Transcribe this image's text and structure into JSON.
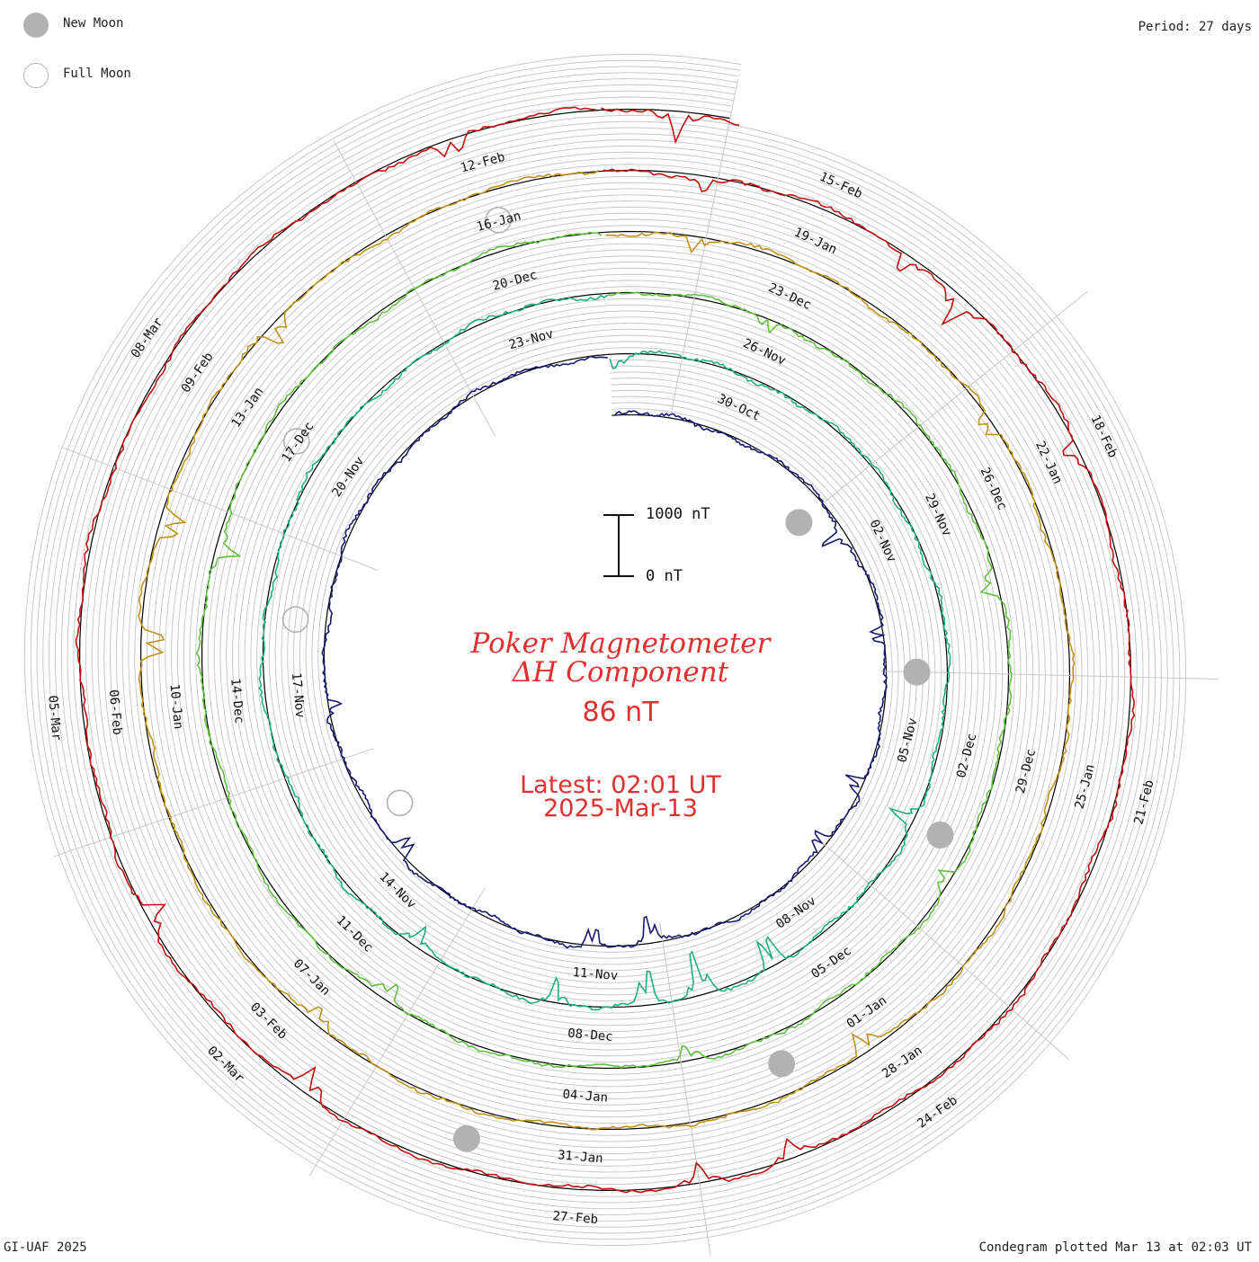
{
  "legend": {
    "new_moon_label": "New Moon",
    "full_moon_label": "Full Moon",
    "new_moon_color": "#b2b2b2",
    "full_moon_color": "#b2b2b2"
  },
  "period_label": "Period: 27 days",
  "footer": {
    "left": "GI-UAF 2025",
    "right": "Condegram plotted Mar 13 at 02:03 UT"
  },
  "title": {
    "line1": "Poker Magnetometer",
    "line2": "ΔH Component",
    "value": "86 nT",
    "latest": "Latest: 02:01 UT",
    "date": "2025-Mar-13"
  },
  "scale_bar": {
    "top_label": "1000 nT",
    "bottom_label": "0 nT"
  },
  "chart_data": {
    "type": "line",
    "subtype": "spiral condegram",
    "start_date": "2024-10-28",
    "end_date": "2025-03-13 02:01 UT",
    "period_days": 27,
    "unit": "nT",
    "scale_nT": [
      0,
      1000
    ],
    "grid": true,
    "date_labels": [
      {
        "label": "30-Oct",
        "day": 2
      },
      {
        "label": "02-Nov",
        "day": 5
      },
      {
        "label": "05-Nov",
        "day": 8
      },
      {
        "label": "08-Nov",
        "day": 11
      },
      {
        "label": "11-Nov",
        "day": 14
      },
      {
        "label": "14-Nov",
        "day": 17
      },
      {
        "label": "17-Nov",
        "day": 20
      },
      {
        "label": "20-Nov",
        "day": 23
      },
      {
        "label": "23-Nov",
        "day": 26
      },
      {
        "label": "26-Nov",
        "day": 29
      },
      {
        "label": "29-Nov",
        "day": 32
      },
      {
        "label": "02-Dec",
        "day": 35
      },
      {
        "label": "05-Dec",
        "day": 38
      },
      {
        "label": "08-Dec",
        "day": 41
      },
      {
        "label": "11-Dec",
        "day": 44
      },
      {
        "label": "14-Dec",
        "day": 47
      },
      {
        "label": "17-Dec",
        "day": 50
      },
      {
        "label": "20-Dec",
        "day": 53
      },
      {
        "label": "23-Dec",
        "day": 56
      },
      {
        "label": "26-Dec",
        "day": 59
      },
      {
        "label": "29-Dec",
        "day": 62
      },
      {
        "label": "01-Jan",
        "day": 65
      },
      {
        "label": "04-Jan",
        "day": 68
      },
      {
        "label": "07-Jan",
        "day": 71
      },
      {
        "label": "10-Jan",
        "day": 74
      },
      {
        "label": "13-Jan",
        "day": 77
      },
      {
        "label": "16-Jan",
        "day": 80
      },
      {
        "label": "19-Jan",
        "day": 83
      },
      {
        "label": "22-Jan",
        "day": 86
      },
      {
        "label": "25-Jan",
        "day": 89
      },
      {
        "label": "28-Jan",
        "day": 92
      },
      {
        "label": "31-Jan",
        "day": 95
      },
      {
        "label": "03-Feb",
        "day": 98
      },
      {
        "label": "06-Feb",
        "day": 101
      },
      {
        "label": "09-Feb",
        "day": 104
      },
      {
        "label": "12-Feb",
        "day": 107
      },
      {
        "label": "15-Feb",
        "day": 110
      },
      {
        "label": "18-Feb",
        "day": 113
      },
      {
        "label": "21-Feb",
        "day": 116
      },
      {
        "label": "24-Feb",
        "day": 119
      },
      {
        "label": "27-Feb",
        "day": 122
      },
      {
        "label": "02-Mar",
        "day": 125
      },
      {
        "label": "05-Mar",
        "day": 128
      },
      {
        "label": "08-Mar",
        "day": 131
      }
    ],
    "new_moons": [
      "2024-11-01",
      "2024-12-01",
      "2024-12-30",
      "2025-01-29",
      "2025-02-28"
    ],
    "full_moons": [
      "2024-11-15",
      "2024-12-15",
      "2025-01-13",
      "2025-02-12"
    ],
    "series_colors": [
      "#000000",
      "#191970",
      "#1a1a8c",
      "#20b080",
      "#2ab0a0",
      "#60c040",
      "#a8b818",
      "#c09018",
      "#c05010",
      "#c01010"
    ],
    "disturbances": [
      {
        "day": 4.6,
        "nT": 460
      },
      {
        "day": 6.4,
        "nT": 380
      },
      {
        "day": 8.9,
        "nT": 430
      },
      {
        "day": 10.0,
        "nT": 360
      },
      {
        "day": 13.2,
        "nT": 500
      },
      {
        "day": 14.1,
        "nT": 420
      },
      {
        "day": 17.4,
        "nT": 400
      },
      {
        "day": 19.8,
        "nT": 300
      },
      {
        "day": 27.1,
        "nT": 260
      },
      {
        "day": 36.0,
        "nT": 450
      },
      {
        "day": 38.6,
        "nT": 720
      },
      {
        "day": 39.6,
        "nT": 820
      },
      {
        "day": 40.3,
        "nT": 700
      },
      {
        "day": 41.5,
        "nT": 460
      },
      {
        "day": 43.4,
        "nT": 360
      },
      {
        "day": 55.9,
        "nT": 280
      },
      {
        "day": 60.0,
        "nT": 320
      },
      {
        "day": 63.4,
        "nT": 300
      },
      {
        "day": 66.9,
        "nT": 300
      },
      {
        "day": 70.3,
        "nT": 350
      },
      {
        "day": 75.6,
        "nT": 380
      },
      {
        "day": 81.9,
        "nT": 260
      },
      {
        "day": 85.4,
        "nT": 330
      },
      {
        "day": 92.2,
        "nT": 420
      },
      {
        "day": 97.7,
        "nT": 300
      },
      {
        "day": 101.6,
        "nT": 560
      },
      {
        "day": 102.7,
        "nT": 520
      },
      {
        "day": 104.7,
        "nT": 480
      },
      {
        "day": 108.9,
        "nT": 260
      },
      {
        "day": 110.8,
        "nT": 340
      },
      {
        "day": 111.4,
        "nT": 480
      },
      {
        "day": 113.0,
        "nT": 300
      },
      {
        "day": 120.2,
        "nT": 300
      },
      {
        "day": 121.0,
        "nT": 380
      },
      {
        "day": 124.4,
        "nT": 460
      },
      {
        "day": 126.3,
        "nT": 380
      },
      {
        "day": 133.8,
        "nT": 360
      },
      {
        "day": 135.6,
        "nT": 480
      }
    ]
  }
}
